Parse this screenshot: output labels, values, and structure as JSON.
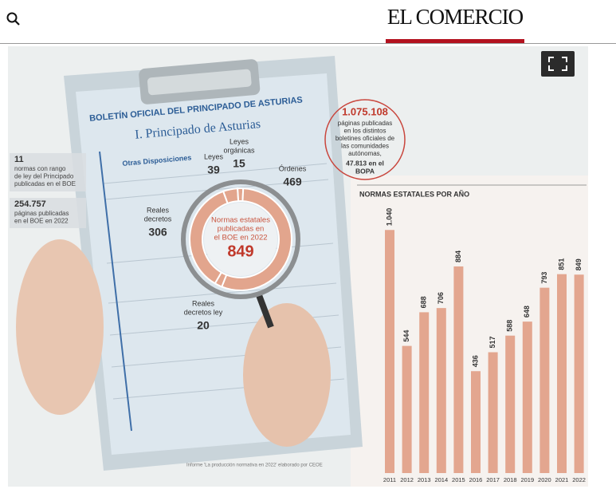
{
  "header": {
    "logo": "EL COMERCIO"
  },
  "infographic": {
    "clipboard": {
      "title": "BOLETÍN OFICIAL DEL PRINCIPADO DE ASTURIAS",
      "section": "I. Principado de Asturias",
      "subsection": "Otras Disposiciones"
    },
    "stats": [
      {
        "value": "11",
        "lines": [
          "normas con rango",
          "de ley del Principado",
          "publicadas en el BOE"
        ]
      },
      {
        "value": "254.757",
        "lines": [
          "páginas publicadas",
          "en el BOE en 2022"
        ]
      }
    ],
    "regional": {
      "value": "1.075.108",
      "lines": [
        "páginas publicadas",
        "en los distintos",
        "boletines oficiales de",
        "las comunidades",
        "autónomas,"
      ],
      "bopa_lines": [
        "47.813 en el",
        "BOPA"
      ]
    },
    "donut": {
      "center_lines": [
        "Normas estatales",
        "publicadas en",
        "el BOE en 2022"
      ],
      "total": 849,
      "color": "#e2a58d",
      "segments": [
        {
          "label_lines": [
            "Leyes"
          ],
          "value": 39
        },
        {
          "label_lines": [
            "Leyes",
            "orgánicas"
          ],
          "value": 15
        },
        {
          "label_lines": [
            "Órdenes"
          ],
          "value": 469
        },
        {
          "label_lines": [
            "Reales",
            "decretos ley"
          ],
          "value": 20
        },
        {
          "label_lines": [
            "Reales",
            "decretos"
          ],
          "value": 306
        }
      ]
    },
    "bar_chart": {
      "type": "bar",
      "title": "NORMAS ESTATALES POR AÑO",
      "categories": [
        "2011",
        "2012",
        "2013",
        "2014",
        "2015",
        "2016",
        "2017",
        "2018",
        "2019",
        "2020",
        "2021",
        "2022"
      ],
      "values": [
        1040,
        544,
        688,
        706,
        884,
        436,
        517,
        588,
        648,
        793,
        851,
        849
      ],
      "value_labels": [
        "1.040",
        "544",
        "688",
        "706",
        "884",
        "436",
        "517",
        "588",
        "648",
        "793",
        "851",
        "849"
      ],
      "color": "#e3a68f"
    },
    "source": "Informe 'La producción normativa en 2022' elaborado por CEOE"
  }
}
